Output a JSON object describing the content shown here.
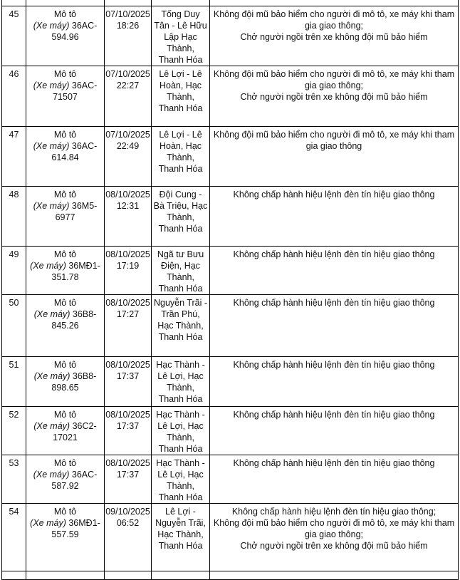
{
  "colors": {
    "background": "#ffffff",
    "border": "#000000",
    "text": "#121212"
  },
  "table": {
    "rows": [
      {
        "num": "45",
        "vehicle_type": "Mô tô",
        "vehicle_sub": "(Xe máy)",
        "plate": "36AC-594.96",
        "date": "07/10/2025",
        "time": "18:26",
        "location": "Tống Duy Tân - Lê Hữu Lập Hạc Thành, Thanh Hóa",
        "violations": [
          "Không đội mũ bảo hiểm cho người đi mô tô, xe máy khi tham gia giao thông;",
          "Chở người ngồi trên xe không đội mũ bảo hiểm"
        ]
      },
      {
        "num": "46",
        "vehicle_type": "Mô tô",
        "vehicle_sub": "(Xe máy)",
        "plate": "36AC-71507",
        "date": "07/10/2025",
        "time": "22:27",
        "location": "Lê Lợi - Lê Hoàn, Hạc Thành, Thanh Hóa",
        "violations": [
          "Không đội mũ bảo hiểm cho người đi mô tô, xe máy khi tham gia giao thông;",
          "Chở người ngồi trên xe không đội mũ bảo hiểm"
        ]
      },
      {
        "num": "47",
        "vehicle_type": "Mô tô",
        "vehicle_sub": "(Xe máy)",
        "plate": "36AC-614.84",
        "date": "07/10/2025",
        "time": "22:49",
        "location": "Lê Lợi - Lê Hoàn, Hạc Thành, Thanh Hóa",
        "violations": [
          "Không đội mũ bảo hiểm cho người đi mô tô, xe máy khi tham gia giao thông"
        ]
      },
      {
        "num": "48",
        "vehicle_type": "Mô tô",
        "vehicle_sub": "(Xe máy)",
        "plate": "36M5-6977",
        "date": "08/10/2025",
        "time": "12:31",
        "location": "Đội Cung - Bà Triệu, Hạc Thành, Thanh Hóa",
        "violations": [
          "Không chấp hành hiệu lệnh đèn tín hiệu giao thông"
        ]
      },
      {
        "num": "49",
        "vehicle_type": "Mô tô",
        "vehicle_sub": "(Xe máy)",
        "plate": "36MĐ1-351.78",
        "date": "08/10/2025",
        "time": "17:19",
        "location": "Ngã tư Bưu Điện, Hạc Thành, Thanh Hóa",
        "violations": [
          "Không chấp hành hiệu lệnh đèn tín hiệu giao thông"
        ]
      },
      {
        "num": "50",
        "vehicle_type": "Mô tô",
        "vehicle_sub": "(Xe máy)",
        "plate": "36B8-845.26",
        "date": "08/10/2025",
        "time": "17:27",
        "location": "Nguyễn Trãi - Trần Phú, Hạc Thành, Thanh Hóa",
        "violations": [
          "Không chấp hành hiệu lệnh đèn tín hiệu giao thông"
        ]
      },
      {
        "num": "51",
        "vehicle_type": "Mô tô",
        "vehicle_sub": "(Xe máy)",
        "plate": "36B8-898.65",
        "date": "08/10/2025",
        "time": "17:37",
        "location": "Hạc Thành - Lê Lợi, Hạc Thành, Thanh Hóa",
        "violations": [
          "Không chấp hành hiệu lệnh đèn tín hiệu giao thông"
        ]
      },
      {
        "num": "52",
        "vehicle_type": "Mô tô",
        "vehicle_sub": "(Xe máy)",
        "plate": "36C2-17021",
        "date": "08/10/2025",
        "time": "17:37",
        "location": "Hạc Thành - Lê Lợi, Hạc Thành, Thanh Hóa",
        "violations": [
          "Không chấp hành hiệu lệnh đèn tín hiệu giao thông"
        ]
      },
      {
        "num": "53",
        "vehicle_type": "Mô tô",
        "vehicle_sub": "(Xe máy)",
        "plate": "36AC-587.92",
        "date": "08/10/2025",
        "time": "17:37",
        "location": "Hạc Thành - Lê Lợi, Hạc Thành, Thanh Hóa",
        "violations": [
          "Không chấp hành hiệu lệnh đèn tín hiệu giao thông"
        ]
      },
      {
        "num": "54",
        "vehicle_type": "Mô tô",
        "vehicle_sub": "(Xe máy)",
        "plate": "36MĐ1-557.59",
        "date": "09/10/2025",
        "time": "06:52",
        "location": "Lê Lợi - Nguyễn Trãi, Hạc Thành, Thanh Hóa",
        "violations": [
          "Không chấp hành hiệu lệnh đèn tín hiệu giao thông;",
          "Không đội mũ bảo hiểm cho người đi mô tô, xe máy khi tham gia giao thông;",
          "Chở người ngồi trên xe không đội mũ bảo hiểm"
        ]
      }
    ]
  }
}
